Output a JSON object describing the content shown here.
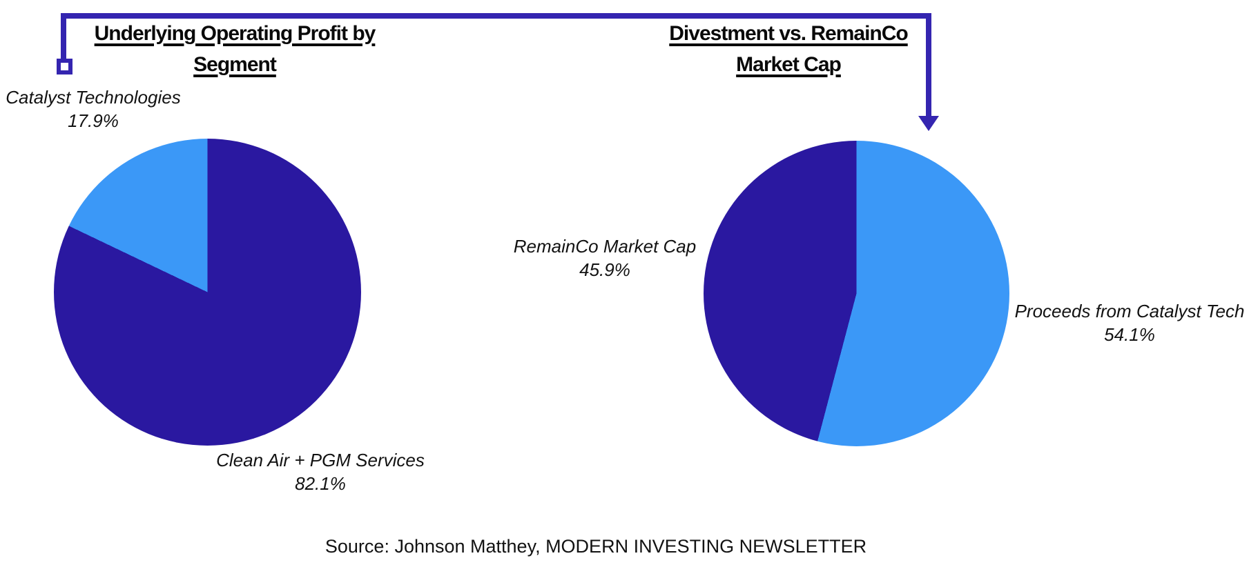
{
  "colors": {
    "navy": "#2a18a0",
    "sky": "#3b98f7",
    "connector": "#3425b0",
    "text": "#0a0a0a"
  },
  "chart_data": [
    {
      "type": "pie",
      "title": "Underlying Operating Profit by Segment",
      "title_lines": [
        "Underlying Operating Profit by",
        "Segment"
      ],
      "start_angle_deg": 0,
      "direction": "clockwise",
      "legend": "none",
      "slices": [
        {
          "label": "Clean Air + PGM Services",
          "value": 82.1,
          "pct_label": "82.1%",
          "color": "#2a18a0"
        },
        {
          "label": "Catalyst Technologies",
          "value": 17.9,
          "pct_label": "17.9%",
          "color": "#3b98f7"
        }
      ]
    },
    {
      "type": "pie",
      "title": "Divestment vs. RemainCo Market Cap",
      "title_lines": [
        "Divestment vs. RemainCo",
        "Market Cap"
      ],
      "start_angle_deg": 0,
      "direction": "clockwise",
      "legend": "none",
      "slices": [
        {
          "label": "Proceeds from Catalyst Tech",
          "value": 54.1,
          "pct_label": "54.1%",
          "color": "#3b98f7"
        },
        {
          "label": "RemainCo Market Cap",
          "value": 45.9,
          "pct_label": "45.9%",
          "color": "#2a18a0"
        }
      ]
    }
  ],
  "source": {
    "text": "Source: Johnson Matthey, MODERN INVESTING NEWSLETTER"
  }
}
